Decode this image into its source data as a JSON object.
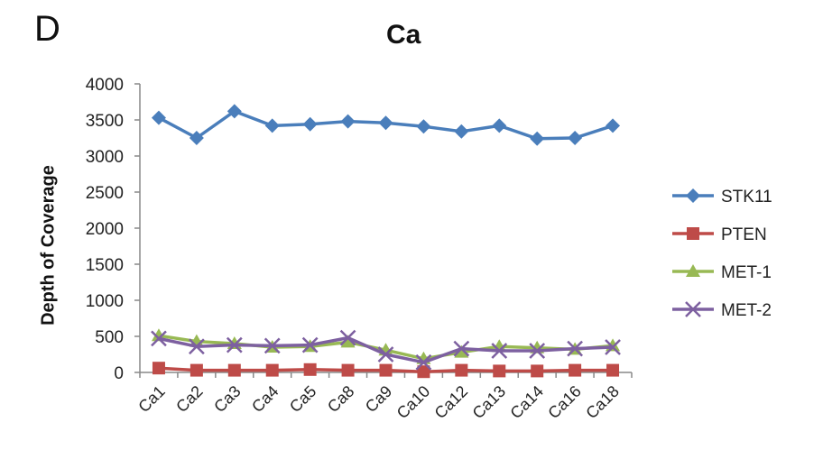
{
  "panel_label": "D",
  "chart_data": {
    "type": "line",
    "title": "Ca",
    "xlabel": "",
    "ylabel": "Depth of Coverage",
    "ylim": [
      0,
      4000
    ],
    "yticks": [
      0,
      500,
      1000,
      1500,
      2000,
      2500,
      3000,
      3500,
      4000
    ],
    "categories": [
      "Ca1",
      "Ca2",
      "Ca3",
      "Ca4",
      "Ca5",
      "Ca8",
      "Ca9",
      "Ca10",
      "Ca12",
      "Ca13",
      "Ca14",
      "Ca16",
      "Ca18"
    ],
    "legend_position": "right",
    "series": [
      {
        "name": "STK11",
        "color": "#4a7ebb",
        "marker": "diamond",
        "values": [
          3530,
          3250,
          3620,
          3420,
          3440,
          3480,
          3460,
          3410,
          3340,
          3420,
          3240,
          3250,
          3420
        ]
      },
      {
        "name": "PTEN",
        "color": "#be4b48",
        "marker": "square",
        "values": [
          60,
          30,
          30,
          30,
          40,
          30,
          30,
          10,
          30,
          20,
          20,
          30,
          30
        ]
      },
      {
        "name": "MET-1",
        "color": "#98b954",
        "marker": "triangle",
        "values": [
          510,
          430,
          400,
          350,
          360,
          420,
          310,
          190,
          280,
          360,
          340,
          320,
          370
        ]
      },
      {
        "name": "MET-2",
        "color": "#7d60a0",
        "marker": "x",
        "values": [
          470,
          360,
          380,
          370,
          380,
          480,
          250,
          140,
          330,
          300,
          300,
          330,
          350
        ]
      }
    ]
  }
}
